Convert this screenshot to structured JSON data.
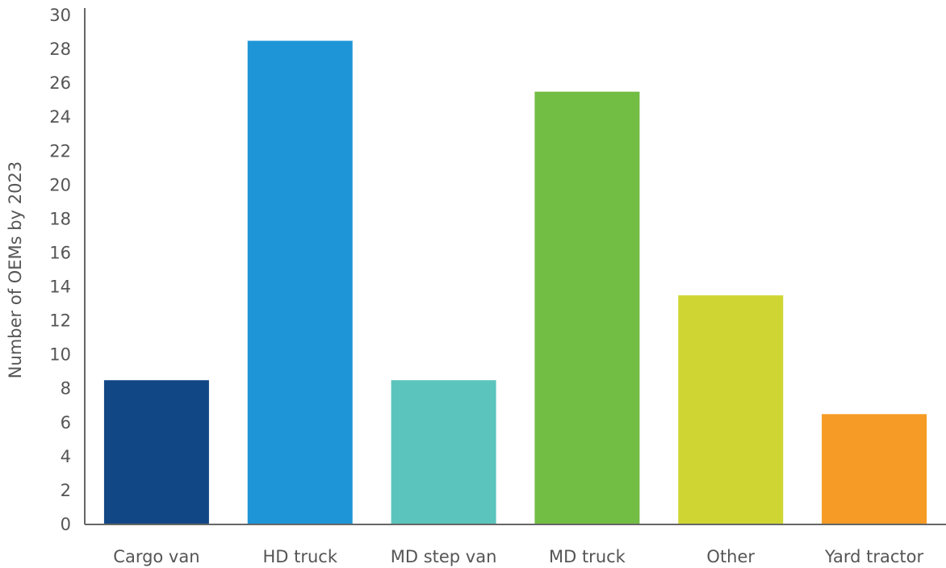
{
  "chart_data": {
    "type": "bar",
    "title": "",
    "xlabel": "",
    "ylabel": "Number of OEMs by 2023",
    "ylim": [
      0,
      30
    ],
    "yticks": [
      0,
      2,
      4,
      6,
      8,
      10,
      12,
      14,
      16,
      18,
      20,
      22,
      24,
      26,
      28,
      30
    ],
    "grid": false,
    "legend": "none",
    "categories": [
      "Cargo van",
      "HD truck",
      "MD step van",
      "MD truck",
      "Other",
      "Yard tractor"
    ],
    "values": [
      8.5,
      28.5,
      8.5,
      25.5,
      13.5,
      6.5
    ],
    "colors": [
      "#124785",
      "#1e95d6",
      "#5bc4bd",
      "#72bd44",
      "#cfd634",
      "#f69b25"
    ]
  }
}
